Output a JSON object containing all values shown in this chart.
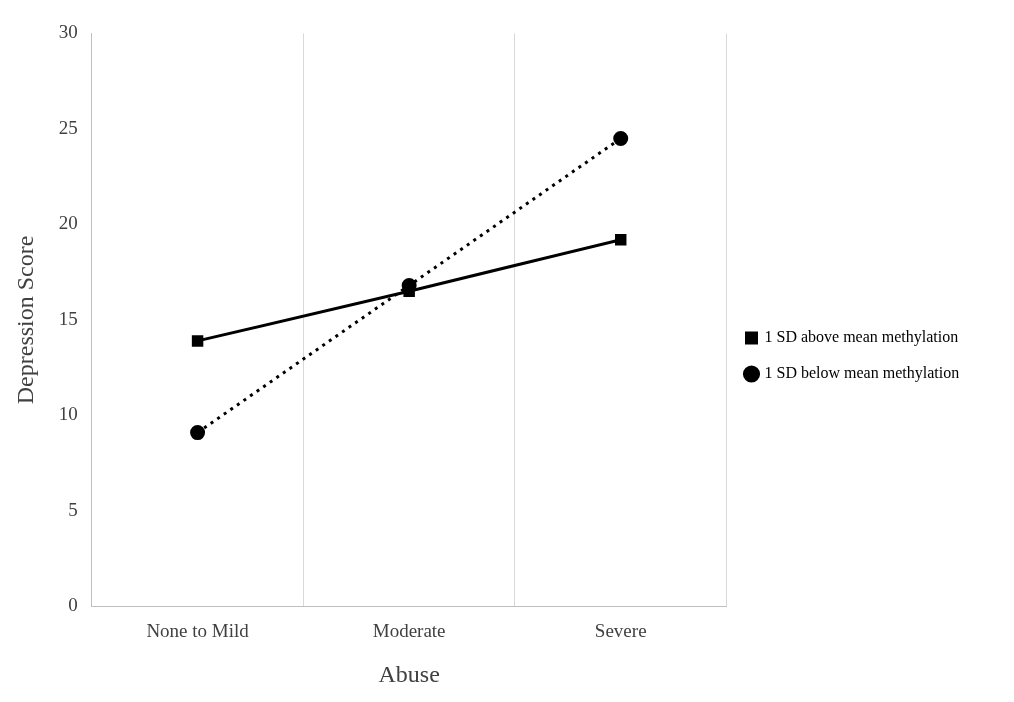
{
  "chart_data": {
    "type": "line",
    "xlabel": "Abuse",
    "ylabel": "Depression Score",
    "categories": [
      "None to Mild",
      "Moderate",
      "Severe"
    ],
    "series": [
      {
        "name": "1 SD below mean methylation",
        "color": "#000000",
        "values": [
          9.1,
          16.8,
          24.5
        ],
        "marker": "circle",
        "line_style": "dotted"
      },
      {
        "name": "1 SD above mean methylation",
        "color": "#000000",
        "values": [
          13.9,
          16.5,
          19.2
        ],
        "marker": "square",
        "line_style": "solid"
      }
    ],
    "ylim": [
      0,
      30
    ],
    "yticks": [
      0,
      5,
      10,
      15,
      20,
      25,
      30
    ],
    "grid": "x",
    "legend": "right"
  }
}
